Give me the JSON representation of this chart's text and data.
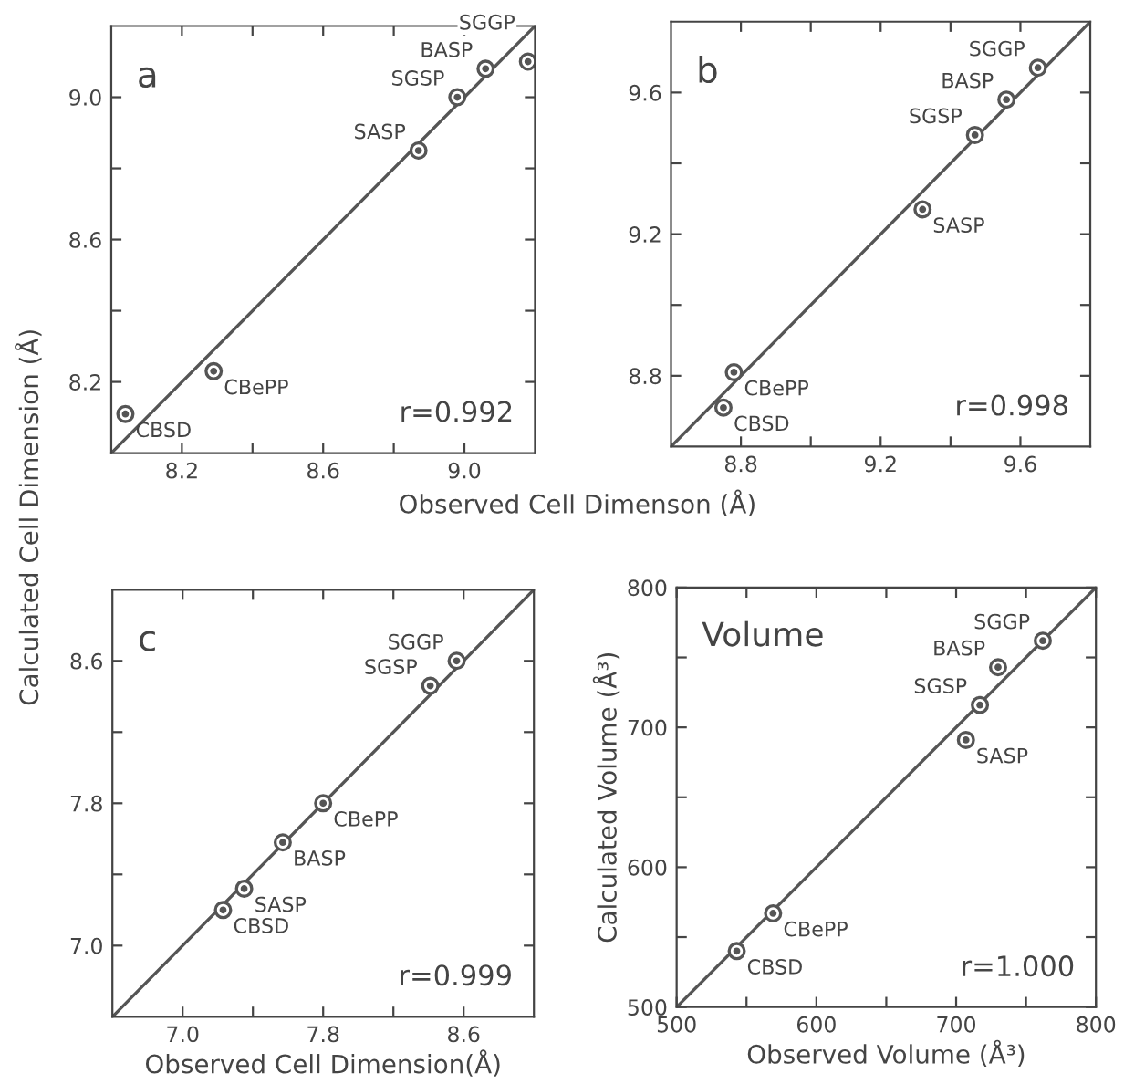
{
  "chart_data": [
    {
      "type": "scatter",
      "xlabel": "Observed Cell Dimenson (Å)",
      "ylabel": "Calculated Cell Dimension (Å)",
      "xlim": [
        8.0,
        9.2
      ],
      "ylim": [
        8.0,
        9.2
      ],
      "xticks": [
        8.2,
        {
          "value": 8.4,
          "label": null
        },
        8.6,
        {
          "value": 8.8,
          "label": null
        },
        {
          "value": 9.0,
          "label": "9.0"
        }
      ],
      "yticks": [
        8.2,
        {
          "value": 8.4,
          "label": null
        },
        8.6,
        {
          "value": 8.8,
          "label": null
        },
        {
          "value": 9.0,
          "label": "9.0"
        }
      ],
      "grid": false,
      "series": [
        {
          "type": "line",
          "marker": "none",
          "color": "#555555",
          "x": [
            8.0,
            9.2
          ],
          "values": [
            8.0,
            9.2
          ]
        },
        {
          "type": "scatter",
          "marker": "circle",
          "color": "#555555",
          "x": [
            8.04,
            8.29,
            8.87,
            8.98,
            9.06,
            9.18
          ],
          "values": [
            8.11,
            8.23,
            8.85,
            9.0,
            9.08,
            9.1
          ]
        }
      ],
      "annotations": [
        "a",
        "r=0.992",
        {
          "text": "CBSD",
          "x": 8.04,
          "y": 8.11
        },
        {
          "text": "CBePP",
          "x": 8.29,
          "y": 8.23
        },
        {
          "text": "SASP",
          "x": 8.87,
          "y": 8.85
        },
        {
          "text": "SGSP",
          "x": 8.98,
          "y": 9.0
        },
        {
          "text": "BASP",
          "x": 9.06,
          "y": 9.08
        },
        {
          "text": "SGGP",
          "x": 9.18,
          "y": 9.1
        }
      ]
    },
    {
      "type": "scatter",
      "xlim": [
        8.6,
        9.8
      ],
      "ylim": [
        8.6,
        9.8
      ],
      "xticks": [
        8.8,
        {
          "value": 9.0,
          "label": null
        },
        9.2,
        {
          "value": 9.4,
          "label": null
        },
        9.6
      ],
      "yticks": [
        8.8,
        {
          "value": 9.0,
          "label": null
        },
        9.2,
        {
          "value": 9.4,
          "label": null
        },
        9.6
      ],
      "grid": false,
      "series": [
        {
          "type": "line",
          "marker": "none",
          "color": "#555555",
          "x": [
            8.6,
            9.8
          ],
          "values": [
            8.6,
            9.8
          ]
        },
        {
          "type": "scatter",
          "marker": "circle",
          "color": "#555555",
          "x": [
            8.75,
            8.78,
            9.32,
            9.47,
            9.56,
            9.65
          ],
          "values": [
            8.71,
            8.81,
            9.27,
            9.48,
            9.58,
            9.67
          ]
        }
      ],
      "annotations": [
        "b",
        "r=0.998",
        {
          "text": "CBSD",
          "x": 8.75,
          "y": 8.71
        },
        {
          "text": "CBePP",
          "x": 8.78,
          "y": 8.81
        },
        {
          "text": "SASP",
          "x": 9.32,
          "y": 9.27
        },
        {
          "text": "SGSP",
          "x": 9.47,
          "y": 9.48
        },
        {
          "text": "BASP",
          "x": 9.56,
          "y": 9.58
        },
        {
          "text": "SGGP",
          "x": 9.65,
          "y": 9.67
        }
      ]
    },
    {
      "type": "scatter",
      "xlabel": "Observed Cell Dimension(Å)",
      "xlim": [
        6.6,
        9.0
      ],
      "ylim": [
        6.6,
        9.0
      ],
      "xticks": [
        {
          "value": 7.0,
          "label": "7.0"
        },
        {
          "value": 7.4,
          "label": null
        },
        7.8,
        {
          "value": 8.2,
          "label": null
        },
        8.6
      ],
      "yticks": [
        {
          "value": 7.0,
          "label": "7.0"
        },
        {
          "value": 7.4,
          "label": null
        },
        7.8,
        {
          "value": 8.2,
          "label": null
        },
        8.6
      ],
      "grid": false,
      "series": [
        {
          "type": "line",
          "marker": "none",
          "color": "#555555",
          "x": [
            6.6,
            9.0
          ],
          "values": [
            6.6,
            9.0
          ]
        },
        {
          "type": "scatter",
          "marker": "circle",
          "color": "#555555",
          "x": [
            7.23,
            7.35,
            7.57,
            7.8,
            8.41,
            8.56
          ],
          "values": [
            7.2,
            7.32,
            7.58,
            7.8,
            8.46,
            8.6
          ]
        }
      ],
      "annotations": [
        "c",
        "r=0.999",
        {
          "text": "CBSD",
          "x": 7.23,
          "y": 7.2
        },
        {
          "text": "SASP",
          "x": 7.35,
          "y": 7.32
        },
        {
          "text": "BASP",
          "x": 7.57,
          "y": 7.58
        },
        {
          "text": "CBePP",
          "x": 7.8,
          "y": 7.8
        },
        {
          "text": "SGSP",
          "x": 8.41,
          "y": 8.46
        },
        {
          "text": "SGGP",
          "x": 8.56,
          "y": 8.6
        }
      ]
    },
    {
      "type": "scatter",
      "xlabel": "Observed Volume (Å³)",
      "ylabel": "Calculated Volume (Å³)",
      "xlim": [
        500,
        800
      ],
      "ylim": [
        500,
        800
      ],
      "xticks": [
        500,
        {
          "value": 550,
          "label": null
        },
        600,
        {
          "value": 650,
          "label": null
        },
        700,
        {
          "value": 750,
          "label": null
        },
        800
      ],
      "yticks": [
        500,
        {
          "value": 550,
          "label": null
        },
        600,
        {
          "value": 650,
          "label": null
        },
        700,
        {
          "value": 750,
          "label": null
        },
        800
      ],
      "grid": false,
      "series": [
        {
          "type": "line",
          "marker": "none",
          "color": "#555555",
          "x": [
            500,
            800
          ],
          "values": [
            500,
            800
          ]
        },
        {
          "type": "scatter",
          "marker": "circle",
          "color": "#555555",
          "x": [
            543,
            569,
            707,
            717,
            730,
            762
          ],
          "values": [
            540,
            567,
            691,
            716,
            743,
            762
          ]
        }
      ],
      "annotations": [
        "Volume",
        "r=1.000",
        {
          "text": "CBSD",
          "x": 543,
          "y": 540
        },
        {
          "text": "CBePP",
          "x": 569,
          "y": 567
        },
        {
          "text": "SASP",
          "x": 707,
          "y": 691
        },
        {
          "text": "SGSP",
          "x": 717,
          "y": 716
        },
        {
          "text": "BASP",
          "x": 730,
          "y": 743
        },
        {
          "text": "SGGP",
          "x": 762,
          "y": 762
        }
      ]
    }
  ]
}
